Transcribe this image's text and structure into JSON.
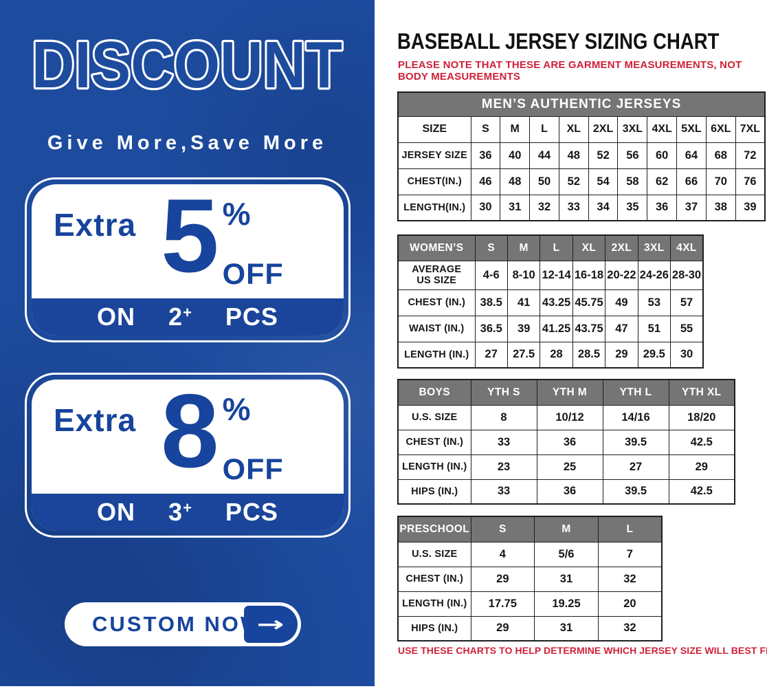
{
  "colors": {
    "panel_blue": "#1d4b9e",
    "accent_blue": "#17449c",
    "band_blue": "#1a459a",
    "header_gray": "#757575",
    "note_red": "#cf2038",
    "table_border": "#1e1e1e"
  },
  "left_panel": {
    "headline": "DISCOUNT",
    "tagline": "Give More,Save More",
    "offers": [
      {
        "prefix": "Extra",
        "percent": "5",
        "percent_sign": "%",
        "off": "OFF",
        "on": "ON",
        "qty": "2",
        "plus": "+",
        "pcs": "PCS"
      },
      {
        "prefix": "Extra",
        "percent": "8",
        "percent_sign": "%",
        "off": "OFF",
        "on": "ON",
        "qty": "3",
        "plus": "+",
        "pcs": "PCS"
      }
    ],
    "cta": {
      "label": "CUSTOM NOW",
      "arrow": "→"
    }
  },
  "right_panel": {
    "title": "BASEBALL JERSEY SIZING CHART",
    "top_note": "PLEASE NOTE THAT THESE ARE GARMENT MEASUREMENTS, NOT BODY MEASUREMENTS",
    "bottom_note": "USE THESE CHARTS TO HELP DETERMINE WHICH JERSEY SIZE WILL BEST FIT YOU.",
    "tables": [
      {
        "id": "mens",
        "banner": "MEN’S AUTHENTIC JERSEYS",
        "header_row": [
          "SIZE",
          "S",
          "M",
          "L",
          "XL",
          "2XL",
          "3XL",
          "4XL",
          "5XL",
          "6XL",
          "7XL"
        ],
        "rows": [
          [
            "JERSEY SIZE",
            "36",
            "40",
            "44",
            "48",
            "52",
            "56",
            "60",
            "64",
            "68",
            "72"
          ],
          [
            "CHEST(IN.)",
            "46",
            "48",
            "50",
            "52",
            "54",
            "58",
            "62",
            "66",
            "70",
            "76"
          ],
          [
            "LENGTH(IN.)",
            "30",
            "31",
            "32",
            "33",
            "34",
            "35",
            "36",
            "37",
            "38",
            "39"
          ]
        ]
      },
      {
        "id": "womens",
        "header_row": [
          "WOMEN’S",
          "S",
          "M",
          "L",
          "XL",
          "2XL",
          "3XL",
          "4XL"
        ],
        "rows": [
          [
            "AVERAGE\nUS SIZE",
            "4-6",
            "8-10",
            "12-14",
            "16-18",
            "20-22",
            "24-26",
            "28-30"
          ],
          [
            "CHEST (IN.)",
            "38.5",
            "41",
            "43.25",
            "45.75",
            "49",
            "53",
            "57"
          ],
          [
            "WAIST (IN.)",
            "36.5",
            "39",
            "41.25",
            "43.75",
            "47",
            "51",
            "55"
          ],
          [
            "LENGTH (IN.)",
            "27",
            "27.5",
            "28",
            "28.5",
            "29",
            "29.5",
            "30"
          ]
        ]
      },
      {
        "id": "boys",
        "header_row": [
          "BOYS",
          "YTH S",
          "YTH M",
          "YTH L",
          "YTH XL"
        ],
        "rows": [
          [
            "U.S. SIZE",
            "8",
            "10/12",
            "14/16",
            "18/20"
          ],
          [
            "CHEST (IN.)",
            "33",
            "36",
            "39.5",
            "42.5"
          ],
          [
            "LENGTH (IN.)",
            "23",
            "25",
            "27",
            "29"
          ],
          [
            "HIPS (IN.)",
            "33",
            "36",
            "39.5",
            "42.5"
          ]
        ]
      },
      {
        "id": "preschool",
        "header_row": [
          "PRESCHOOL",
          "S",
          "M",
          "L"
        ],
        "rows": [
          [
            "U.S. SIZE",
            "4",
            "5/6",
            "7"
          ],
          [
            "CHEST (IN.)",
            "29",
            "31",
            "32"
          ],
          [
            "LENGTH (IN.)",
            "17.75",
            "19.25",
            "20"
          ],
          [
            "HIPS (IN.)",
            "29",
            "31",
            "32"
          ]
        ]
      }
    ]
  }
}
